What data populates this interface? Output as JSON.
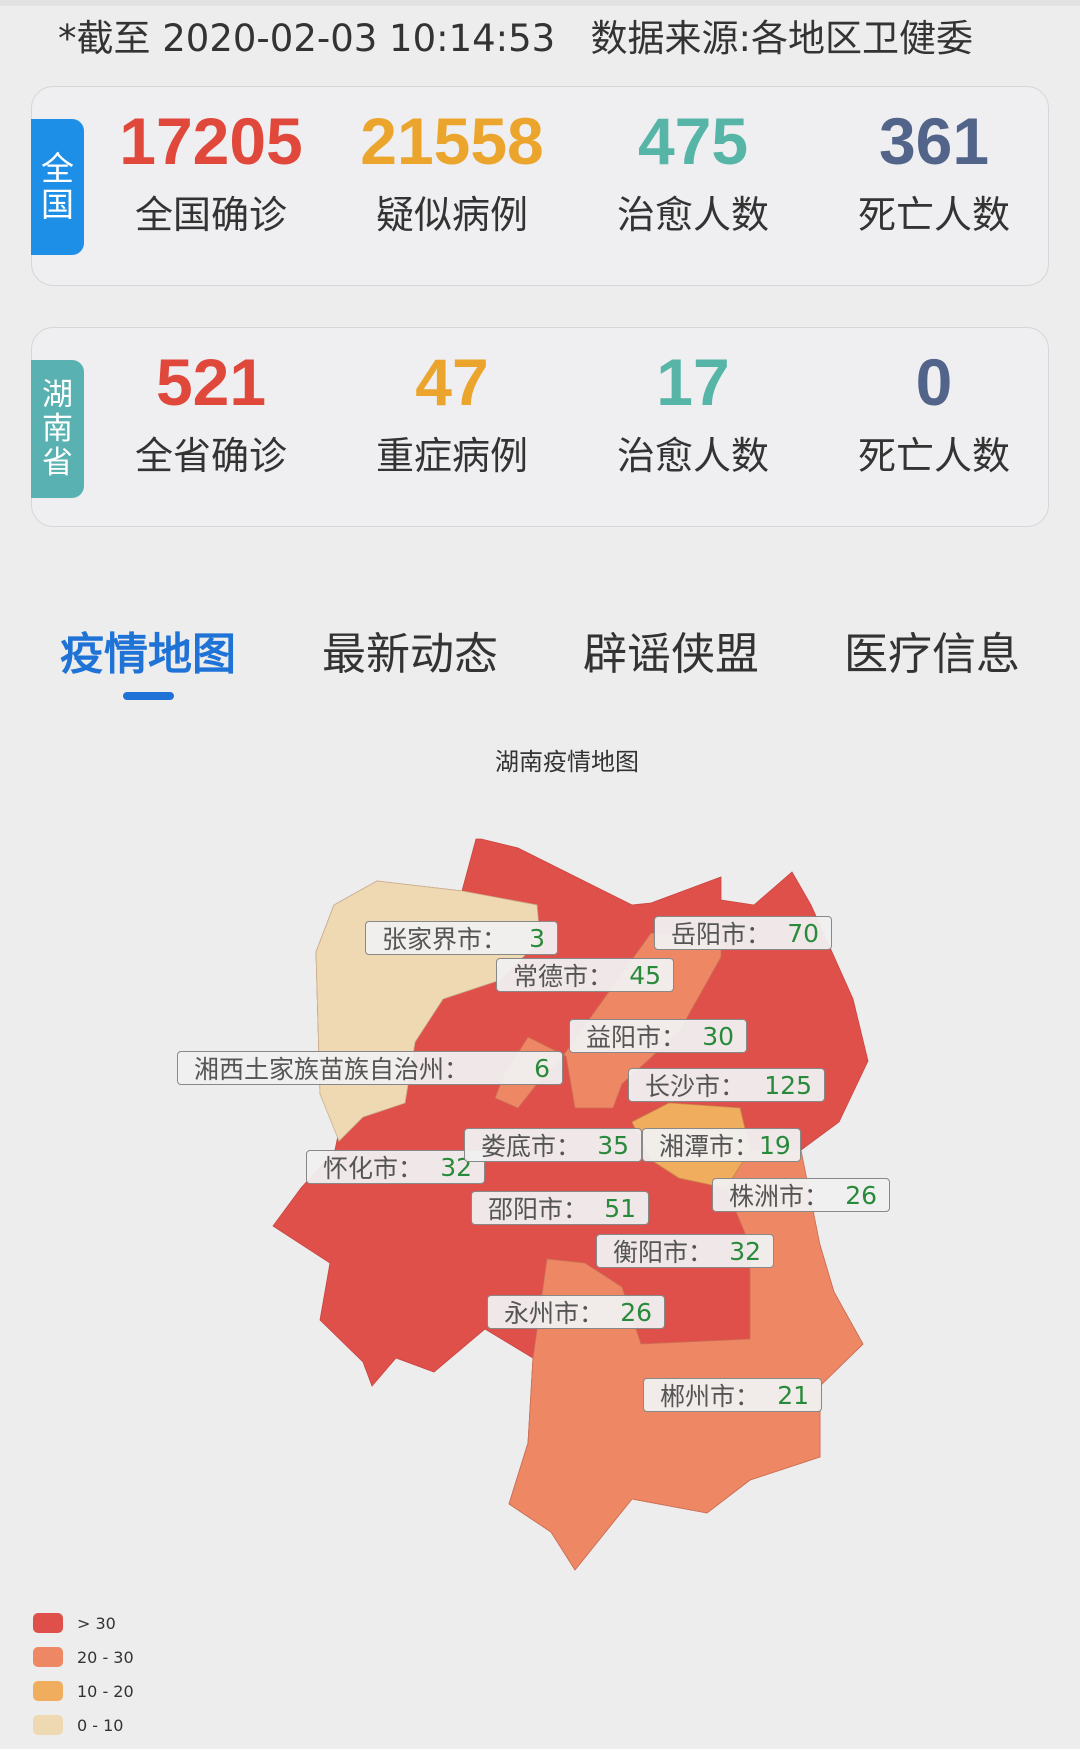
{
  "header": {
    "text": "*截至 2020-02-03 10:14:53   数据来源:各地区卫健委"
  },
  "national": {
    "badge": [
      "全",
      "国"
    ],
    "badge_color": "#1d8fe6",
    "stats": [
      {
        "value": "17205",
        "label": "全国确诊",
        "color": "#e0483b"
      },
      {
        "value": "21558",
        "label": "疑似病例",
        "color": "#eba52d"
      },
      {
        "value": "475",
        "label": "治愈人数",
        "color": "#56b5a6"
      },
      {
        "value": "361",
        "label": "死亡人数",
        "color": "#53648a"
      }
    ]
  },
  "province": {
    "badge": [
      "湖",
      "南",
      "省"
    ],
    "badge_color": "#5ab1b1",
    "stats": [
      {
        "value": "521",
        "label": "全省确诊",
        "color": "#e0483b"
      },
      {
        "value": "47",
        "label": "重症病例",
        "color": "#eba52d"
      },
      {
        "value": "17",
        "label": "治愈人数",
        "color": "#56b5a6"
      },
      {
        "value": "0",
        "label": "死亡人数",
        "color": "#53648a"
      }
    ]
  },
  "tabs": [
    {
      "label": "疫情地图",
      "active": true
    },
    {
      "label": "最新动态",
      "active": false
    },
    {
      "label": "辟谣侠盟",
      "active": false
    },
    {
      "label": "医疗信息",
      "active": false
    }
  ],
  "map": {
    "title": "湖南疫情地图",
    "regions": [
      {
        "name": "张家界市：",
        "value": "3"
      },
      {
        "name": "岳阳市：",
        "value": "70"
      },
      {
        "name": "常德市：",
        "value": "45"
      },
      {
        "name": "益阳市：",
        "value": "30"
      },
      {
        "name": "湘西土家族苗族自治州：",
        "value": "6"
      },
      {
        "name": "长沙市：",
        "value": "125"
      },
      {
        "name": "娄底市：",
        "value": "35"
      },
      {
        "name": "湘潭市：",
        "value": "19"
      },
      {
        "name": "怀化市：",
        "value": "32"
      },
      {
        "name": "株洲市：",
        "value": "26"
      },
      {
        "name": "邵阳市：",
        "value": "51"
      },
      {
        "name": "衡阳市：",
        "value": "32"
      },
      {
        "name": "永州市：",
        "value": "26"
      },
      {
        "name": "郴州市：",
        "value": "21"
      }
    ],
    "legend": [
      {
        "label": "> 30",
        "color": "#e0504a"
      },
      {
        "label": "20 - 30",
        "color": "#ee8763"
      },
      {
        "label": "10 - 20",
        "color": "#f0ad5e"
      },
      {
        "label": "0 - 10",
        "color": "#efd9b3"
      }
    ]
  }
}
